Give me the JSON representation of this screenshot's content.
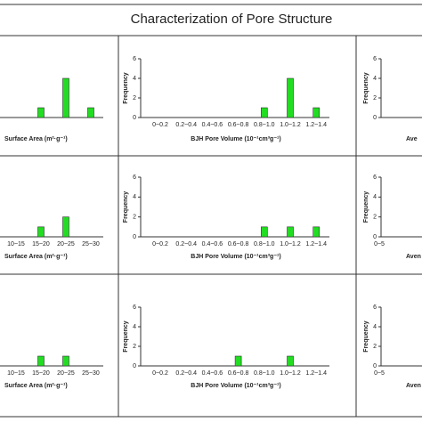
{
  "title": "Characterization of Pore Structure",
  "chart_data": [
    {
      "type": "bar",
      "categories": [
        null,
        null,
        null,
        null
      ],
      "values": [
        0,
        1,
        4,
        1
      ],
      "color": "#22dd22",
      "ylim": [
        0,
        6
      ],
      "xlabel": "Surface Area (m²·g⁻¹)"
    },
    {
      "type": "bar",
      "categories": [
        "0~0.2",
        "0.2~0.4",
        "0.4~0.6",
        "0.6~0.8",
        "0.8~1.0",
        "1.0~1.2",
        "1.2~1.4"
      ],
      "values": [
        0,
        0,
        0,
        0,
        1,
        4,
        1
      ],
      "color": "#22dd22",
      "ylim": [
        0,
        6
      ],
      "yticks": [
        0,
        2,
        4,
        6
      ],
      "ylabel": "Frequency",
      "xlabel": "BJH Pore Volume (10⁻¹cm³g⁻¹)"
    },
    {
      "type": "bar",
      "ylim": [
        0,
        6
      ],
      "yticks": [
        0,
        2,
        4,
        6
      ],
      "ylabel": "Frequency",
      "xlabel": "Ave"
    },
    {
      "type": "bar",
      "categories": [
        "10~15",
        "15~20",
        "20~25",
        "25~30"
      ],
      "values": [
        0,
        1,
        2,
        0
      ],
      "color": "#22dd22",
      "ylim": [
        0,
        6
      ],
      "xlabel": "Surface Area (m²·g⁻¹)"
    },
    {
      "type": "bar",
      "categories": [
        "0~0.2",
        "0.2~0.4",
        "0.4~0.6",
        "0.6~0.8",
        "0.8~1.0",
        "1.0~1.2",
        "1.2~1.4"
      ],
      "values": [
        0,
        0,
        0,
        0,
        1,
        1,
        1
      ],
      "color": "#22dd22",
      "ylim": [
        0,
        6
      ],
      "yticks": [
        0,
        2,
        4,
        6
      ],
      "ylabel": "Frequency",
      "xlabel": "BJH Pore Volume (10⁻¹cm³g⁻¹)"
    },
    {
      "type": "bar",
      "categories": [
        "0~5"
      ],
      "ylim": [
        0,
        6
      ],
      "yticks": [
        0,
        2,
        4,
        6
      ],
      "ylabel": "Frequency",
      "xlabel": "Aven"
    },
    {
      "type": "bar",
      "categories": [
        "10~15",
        "15~20",
        "20~25",
        "25~30"
      ],
      "values": [
        0,
        1,
        1,
        0
      ],
      "color": "#22dd22",
      "ylim": [
        0,
        6
      ],
      "xlabel": "Surface Area (m²·g⁻¹)"
    },
    {
      "type": "bar",
      "categories": [
        "0~0.2",
        "0.2~0.4",
        "0.4~0.6",
        "0.6~0.8",
        "0.8~1.0",
        "1.0~1.2",
        "1.2~1.4"
      ],
      "values": [
        0,
        0,
        0,
        1,
        0,
        1,
        0
      ],
      "color": "#22dd22",
      "ylim": [
        0,
        6
      ],
      "yticks": [
        0,
        2,
        4,
        6
      ],
      "ylabel": "Frequency",
      "xlabel": "BJH Pore Volume (10⁻¹cm³g⁻¹)"
    },
    {
      "type": "bar",
      "categories": [
        "0~5"
      ],
      "ylim": [
        0,
        6
      ],
      "yticks": [
        0,
        2,
        4,
        6
      ],
      "ylabel": "Frequency",
      "xlabel": "Aven"
    }
  ]
}
